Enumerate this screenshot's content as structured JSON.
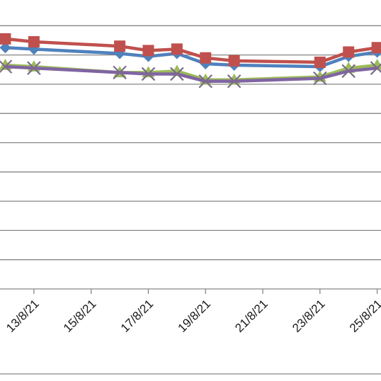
{
  "chart_data": {
    "type": "line",
    "title": "",
    "xlabel": "",
    "ylabel": "",
    "x_tick_labels": [
      "13/8/21",
      "15/8/21",
      "17/8/21",
      "19/8/21",
      "21/8/21",
      "23/8/21",
      "25/8/21"
    ],
    "x_tick_dates": [
      "2021-08-13",
      "2021-08-15",
      "2021-08-17",
      "2021-08-19",
      "2021-08-21",
      "2021-08-23",
      "2021-08-25"
    ],
    "xlim": [
      "2021-08-12",
      "2021-08-26"
    ],
    "ylim": [
      0,
      10
    ],
    "grid": true,
    "legend": "none",
    "series": [
      {
        "color": "#4f81bd",
        "marker": "diamond",
        "x": [
          "2021-08-12",
          "2021-08-13",
          "2021-08-16",
          "2021-08-17",
          "2021-08-18",
          "2021-08-19",
          "2021-08-20",
          "2021-08-23",
          "2021-08-24",
          "2021-08-25"
        ],
        "values": [
          8.25,
          8.2,
          8.05,
          7.95,
          8.05,
          7.7,
          7.65,
          7.6,
          7.95,
          8.1
        ]
      },
      {
        "color": "#c0504d",
        "marker": "square",
        "x": [
          "2021-08-12",
          "2021-08-13",
          "2021-08-16",
          "2021-08-17",
          "2021-08-18",
          "2021-08-19",
          "2021-08-20",
          "2021-08-23",
          "2021-08-24",
          "2021-08-25"
        ],
        "values": [
          8.55,
          8.45,
          8.3,
          8.15,
          8.2,
          7.9,
          7.8,
          7.75,
          8.1,
          8.25
        ]
      },
      {
        "color": "#9bbb59",
        "marker": "triangle",
        "x": [
          "2021-08-12",
          "2021-08-13",
          "2021-08-16",
          "2021-08-17",
          "2021-08-18",
          "2021-08-19",
          "2021-08-20",
          "2021-08-23",
          "2021-08-24",
          "2021-08-25"
        ],
        "values": [
          7.65,
          7.6,
          7.4,
          7.4,
          7.45,
          7.15,
          7.15,
          7.25,
          7.55,
          7.65
        ]
      },
      {
        "color": "#8064a2",
        "marker": "x",
        "x": [
          "2021-08-12",
          "2021-08-13",
          "2021-08-16",
          "2021-08-17",
          "2021-08-18",
          "2021-08-19",
          "2021-08-20",
          "2021-08-23",
          "2021-08-24",
          "2021-08-25"
        ],
        "values": [
          7.6,
          7.55,
          7.4,
          7.35,
          7.35,
          7.1,
          7.1,
          7.2,
          7.45,
          7.55
        ]
      }
    ]
  }
}
